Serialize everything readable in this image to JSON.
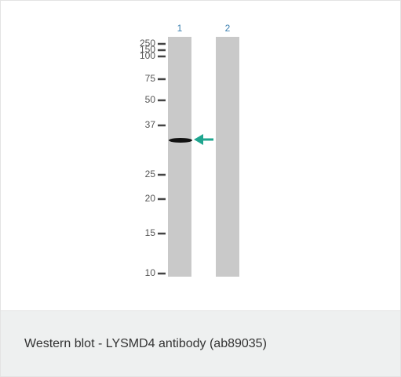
{
  "blot": {
    "lanes": [
      "1",
      "2"
    ],
    "markers": [
      "250",
      "150",
      "100",
      "75",
      "50",
      "37",
      "25",
      "20",
      "15",
      "10"
    ]
  },
  "caption": "Western blot - LYSMD4 antibody (ab89035)"
}
